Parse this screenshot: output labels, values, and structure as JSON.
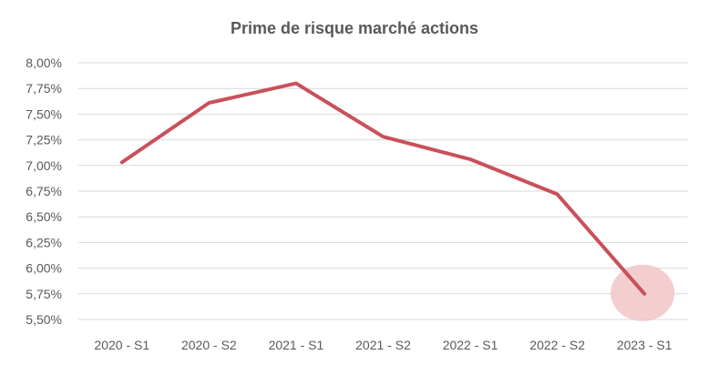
{
  "chart_data": {
    "type": "line",
    "title": "Prime de risque marché actions",
    "xlabel": "",
    "ylabel": "",
    "categories": [
      "2020 - S1",
      "2020 - S2",
      "2021 - S1",
      "2021 - S2",
      "2022 - S1",
      "2022 - S2",
      "2023 - S1"
    ],
    "series": [
      {
        "values": [
          7.03,
          7.61,
          7.8,
          7.28,
          7.06,
          6.72,
          5.75
        ],
        "color": "#C9505A"
      }
    ],
    "ylim": [
      5.5,
      8.0
    ],
    "yticks": [
      "5,50%",
      "5,75%",
      "6,00%",
      "6,25%",
      "6,50%",
      "6,75%",
      "7,00%",
      "7,25%",
      "7,50%",
      "7,75%",
      "8,00%"
    ],
    "grid": true,
    "legend": "none",
    "highlight": {
      "category": "2023 - S1",
      "color": "#F2C4C7"
    }
  }
}
